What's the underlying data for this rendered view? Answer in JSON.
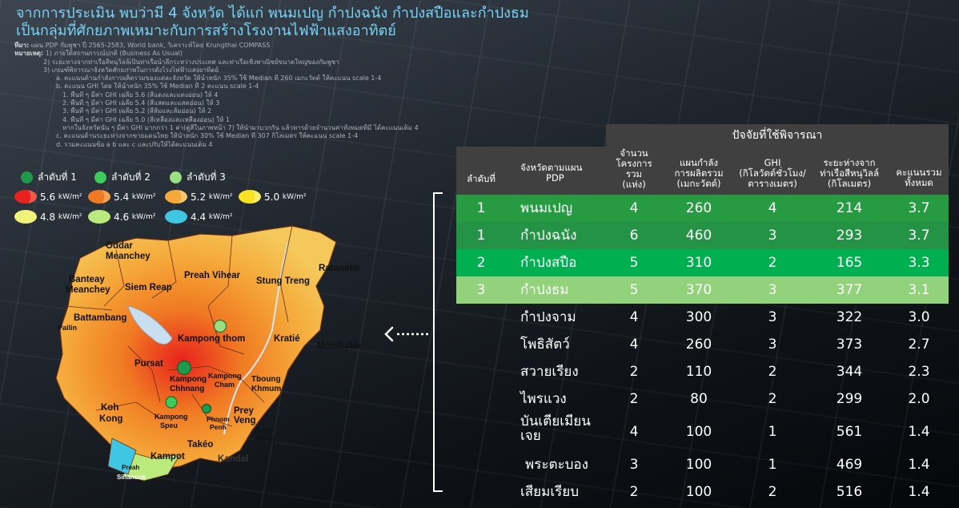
{
  "title": {
    "line1": "จากการประเมิน พบว่ามี 4 จังหวัด ได้แก่ พนมเปญ กำปงฉนัง กำปงสปือและกำปงธม",
    "line2": "เป็นกลุ่มที่ศักยภาพเหมาะกับการสร้างโรงงานไฟฟ้าแสงอาทิตย์"
  },
  "notes": {
    "source_label": "ที่มา:",
    "source_text": "แผน PDP กัมพูชา ปี 2565-2583, World bank, วิเคราะห์โดย Krungthai  COMPASS",
    "remark_label": "หมายเหตุ:",
    "lines": [
      "1) ภายใต้สถานการณ์ปกติ (Business As Usual)",
      "2) ระยะทางจากท่าเรือสีหนุวิลล์เป็นท่าเรือน้ำลึกระหว่างประเทศ และท่าเรือเชิงพาณิชย์ขนาดใหญ่ของกัมพูชา",
      "3) เกณฑ์พิจารณาจังหวัดศักยภาพในการตั้งโรงไฟฟ้าแสงอาทิตย์",
      "a. คะแนนด้านกำลังการผลิตรวมของแต่ละจังหวัด ให้น้ำหนัก 35% ใช้ Median ที่ 260 เมกะวัตต์ ให้คะแนน scale 1-4",
      "b. คะแนน GHI โดย ให้น้ำหนัก 35% ใช้ Median ที่ 2  คะแนน  scale 1-4",
      "1. พื้นที่ ๆ มีค่า GHI เฉลี่ย 5.6 (สีแดงและแดงอ่อน) ให้ 4",
      "2. พื้นที่ ๆ มีค่า GHI เฉลี่ย 5.4 (สีแสดและแสดอ่อน) ให้ 3",
      "3. พื้นที่ ๆ มีค่า GHI เฉลี่ย 5.2 (สีส้มและส้มอ่อน) ให้ 2",
      "4. พื้นที่ ๆ มีค่า GHI เฉลี่ย 5.0 (สีเหลืองและเหลืองอ่อน) ให้ 1",
      "หากในจังหวัดนั้น ๆ มีค่า GHI มากกว่า 1 ค่า(ดูสีในภาพหน้า 7) ให้นำมาบวกกัน แล้วหารด้วยจำนวนค่าทั้งหมดที่มี ได้คะแนนเต็ม 4",
      "c. คะแนนด้านระยะห่างจากขายแดนไทย ให้น้ำหนัก 30% ใช้ Median ที่ 307 กิโลเมตร ให้คะแนน scale 1-4",
      "d. รวมคะแนนข้อ a b และ c และปรับให้ได้คะแนนเต็ม 4"
    ]
  },
  "legend": {
    "rank1": "ลำดับที่ 1",
    "rank2": "ลำดับที่ 2",
    "rank3": "ลำดับที่ 3",
    "unit": "kW/m²",
    "ghi": [
      "5.6",
      "5.4",
      "5.2",
      "5.0",
      "4.8",
      "4.6",
      "4.4"
    ],
    "colors": {
      "rank1": "#1f9a4a",
      "rank2": "#3ccc5c",
      "rank3": "#9bdf83",
      "ghi": [
        "#e8221e",
        "#f07a22",
        "#f5a93a",
        "#f7e321",
        "#f1f27a",
        "#b9ea7b",
        "#3ec6e2"
      ]
    }
  },
  "map": {
    "labels": {
      "oddar": "Oddar",
      "meanchey": "Meanchey",
      "banteay": "Banteay",
      "meanchey2": "Meanchey",
      "siem_reap": "Siem Reap",
      "preah_vihear": "Preah Vihear",
      "stung_treng": "Stung Treng",
      "ratanakiri": "Ratanakiri",
      "battambang": "Battambang",
      "pailin": "Pailin",
      "kampong_thom": "Kampong thom",
      "kratie": "Kratié",
      "mondulkiri": "Mondulkiri",
      "pursat": "Pursat",
      "kampong": "Kampong",
      "chhnang": "Chhnang",
      "kampong2": "Kampong",
      "cham": "Cham",
      "tboung": "Tboung",
      "khmum": "Khmum",
      "koh": "Koh",
      "kong": "Kong",
      "kampong3": "Kampong",
      "speu": "Speu",
      "phnom": "Phnom",
      "penh": "Penh",
      "prey": "Prey",
      "veng": "Veng",
      "takeo": "Takéo",
      "svay": "Svay",
      "rieng": "Rieng",
      "kampot": "Kampot",
      "kandal": "Kandal",
      "preah": "Preah",
      "sihanouk": "Sihanouk"
    }
  },
  "table": {
    "group_header": "ปัจจัยที่ใช้พิจารณา",
    "headers": {
      "rank": "ลำดับที่",
      "province": [
        "จังหวัดตามแผน",
        "PDP"
      ],
      "projects": [
        "จำนวน",
        "โครงการ",
        "รวม",
        "(แห่ง)"
      ],
      "capacity": [
        "แผนกำลัง",
        "การผลิตรวม",
        "(เมกะวัตต์)"
      ],
      "ghi": [
        "GHI",
        "(กิโลวัตต์ชั่วโมง/",
        "ตารางเมตร)"
      ],
      "distance": [
        "ระยะห่างจาก",
        "ท่าเรือสีหนุวิลล์",
        "(กิโลเมตร)"
      ],
      "score": [
        "คะแนนรวม",
        "ทั้งหมด"
      ]
    },
    "rows": [
      {
        "rank": "1",
        "province": "พนมเปญ",
        "projects": "4",
        "capacity": "260",
        "ghi": "4",
        "distance": "214",
        "score": "3.7",
        "bg": "#279b42"
      },
      {
        "rank": "1",
        "province": "กำปงฉนัง",
        "projects": "6",
        "capacity": "460",
        "ghi": "3",
        "distance": "293",
        "score": "3.7",
        "bg": "#249346"
      },
      {
        "rank": "2",
        "province": "กำปงสปือ",
        "projects": "5",
        "capacity": "310",
        "ghi": "2",
        "distance": "165",
        "score": "3.3",
        "bg": "#00b050"
      },
      {
        "rank": "3",
        "province": "กำปงธม",
        "projects": "5",
        "capacity": "370",
        "ghi": "3",
        "distance": "377",
        "score": "3.1",
        "bg": "#92d27a"
      },
      {
        "rank": "",
        "province": "กำปงจาม",
        "projects": "4",
        "capacity": "300",
        "ghi": "3",
        "distance": "322",
        "score": "3.0",
        "bg": ""
      },
      {
        "rank": "",
        "province": "โพธิสัตว์",
        "projects": "4",
        "capacity": "260",
        "ghi": "3",
        "distance": "373",
        "score": "2.7",
        "bg": ""
      },
      {
        "rank": "",
        "province": "สวายเรียง",
        "projects": "2",
        "capacity": "110",
        "ghi": "2",
        "distance": "344",
        "score": "2.3",
        "bg": ""
      },
      {
        "rank": "",
        "province": "ไพรแวง",
        "projects": "2",
        "capacity": "80",
        "ghi": "2",
        "distance": "299",
        "score": "2.0",
        "bg": ""
      },
      {
        "rank": "",
        "province": "บันเตียเมียนเจย",
        "province_l1": "บันเตียเมียน",
        "province_l2": "เจย",
        "projects": "4",
        "capacity": "100",
        "ghi": "1",
        "distance": "561",
        "score": "1.4",
        "bg": ""
      },
      {
        "rank": "",
        "province": "พระตะบอง",
        "projects": "3",
        "capacity": "100",
        "ghi": "1",
        "distance": "469",
        "score": "1.4",
        "bg": ""
      },
      {
        "rank": "",
        "province": "เสียมเรียบ",
        "projects": "2",
        "capacity": "100",
        "ghi": "2",
        "distance": "516",
        "score": "1.4",
        "bg": ""
      }
    ]
  }
}
